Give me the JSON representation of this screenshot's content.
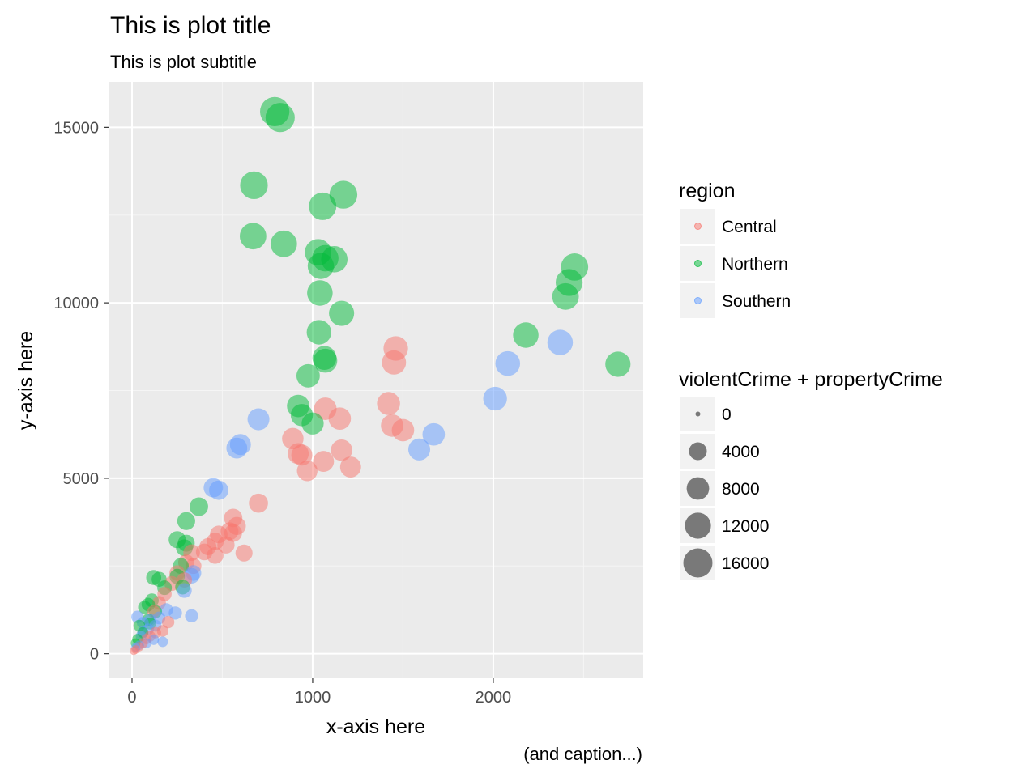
{
  "chart_data": {
    "type": "scatter",
    "title": "This is plot title",
    "subtitle": "This is plot subtitle",
    "xlabel": "x-axis here",
    "ylabel": "y-axis here",
    "caption": "(and caption...)",
    "xlim": [
      -130,
      2830
    ],
    "ylim": [
      -700,
      16300
    ],
    "xticks": [
      0,
      1000,
      2000
    ],
    "yticks": [
      0,
      5000,
      10000,
      15000
    ],
    "x_tick_labels": [
      "0",
      "1000",
      "2000"
    ],
    "y_tick_labels": [
      "0",
      "5000",
      "10000",
      "15000"
    ],
    "grid": true,
    "legend_position": "right",
    "color_legend": {
      "title": "region",
      "entries": [
        {
          "label": "Central",
          "color": "#F8766D"
        },
        {
          "label": "Northern",
          "color": "#00BA38"
        },
        {
          "label": "Southern",
          "color": "#619CFF"
        }
      ]
    },
    "size_legend": {
      "title": "violentCrime + propertyCrime",
      "entries": [
        {
          "label": "0",
          "value": 0
        },
        {
          "label": "4000",
          "value": 4000
        },
        {
          "label": "8000",
          "value": 8000
        },
        {
          "label": "12000",
          "value": 12000
        },
        {
          "label": "16000",
          "value": 16000
        }
      ]
    },
    "series": [
      {
        "name": "Northern",
        "color": "#00BA38",
        "points": [
          [
            790,
            15450
          ],
          [
            820,
            15280
          ],
          [
            675,
            13350
          ],
          [
            1170,
            13080
          ],
          [
            1055,
            12750
          ],
          [
            670,
            11900
          ],
          [
            840,
            11680
          ],
          [
            1030,
            11440
          ],
          [
            1070,
            11270
          ],
          [
            1120,
            11240
          ],
          [
            1045,
            11050
          ],
          [
            1040,
            10280
          ],
          [
            1160,
            9700
          ],
          [
            1035,
            9160
          ],
          [
            1065,
            8430
          ],
          [
            1070,
            8350
          ],
          [
            975,
            7920
          ],
          [
            920,
            7060
          ],
          [
            940,
            6800
          ],
          [
            1000,
            6560
          ],
          [
            2450,
            11020
          ],
          [
            2420,
            10580
          ],
          [
            2400,
            10180
          ],
          [
            2180,
            9080
          ],
          [
            2690,
            8250
          ],
          [
            370,
            4190
          ],
          [
            300,
            3780
          ],
          [
            250,
            3250
          ],
          [
            300,
            3150
          ],
          [
            290,
            3020
          ],
          [
            270,
            2500
          ],
          [
            250,
            2200
          ],
          [
            280,
            1900
          ],
          [
            120,
            2170
          ],
          [
            150,
            2120
          ],
          [
            180,
            1880
          ],
          [
            110,
            1520
          ],
          [
            90,
            1400
          ],
          [
            70,
            1320
          ],
          [
            130,
            1200
          ],
          [
            90,
            970
          ],
          [
            100,
            860
          ],
          [
            40,
            800
          ],
          [
            60,
            600
          ],
          [
            30,
            420
          ],
          [
            20,
            300
          ]
        ]
      },
      {
        "name": "Central",
        "color": "#F8766D",
        "points": [
          [
            1460,
            8700
          ],
          [
            1450,
            8300
          ],
          [
            1420,
            7130
          ],
          [
            1440,
            6500
          ],
          [
            1500,
            6370
          ],
          [
            1070,
            6980
          ],
          [
            1150,
            6700
          ],
          [
            890,
            6130
          ],
          [
            920,
            5700
          ],
          [
            940,
            5660
          ],
          [
            1160,
            5800
          ],
          [
            1060,
            5480
          ],
          [
            1210,
            5320
          ],
          [
            970,
            5210
          ],
          [
            700,
            4290
          ],
          [
            560,
            3870
          ],
          [
            580,
            3640
          ],
          [
            540,
            3490
          ],
          [
            480,
            3400
          ],
          [
            460,
            3200
          ],
          [
            520,
            3100
          ],
          [
            560,
            3440
          ],
          [
            620,
            2870
          ],
          [
            420,
            3050
          ],
          [
            400,
            2900
          ],
          [
            460,
            2800
          ],
          [
            330,
            2880
          ],
          [
            300,
            2600
          ],
          [
            340,
            2500
          ],
          [
            250,
            2300
          ],
          [
            290,
            2100
          ],
          [
            220,
            2000
          ],
          [
            180,
            1700
          ],
          [
            150,
            1450
          ],
          [
            120,
            1200
          ],
          [
            200,
            900
          ],
          [
            170,
            650
          ],
          [
            130,
            600
          ],
          [
            100,
            500
          ],
          [
            80,
            420
          ],
          [
            60,
            300
          ],
          [
            40,
            200
          ],
          [
            20,
            120
          ],
          [
            10,
            80
          ]
        ]
      },
      {
        "name": "Southern",
        "color": "#619CFF",
        "points": [
          [
            2370,
            8870
          ],
          [
            2080,
            8270
          ],
          [
            2010,
            7270
          ],
          [
            1670,
            6250
          ],
          [
            1590,
            5820
          ],
          [
            700,
            6680
          ],
          [
            600,
            5960
          ],
          [
            580,
            5860
          ],
          [
            450,
            4730
          ],
          [
            480,
            4660
          ],
          [
            340,
            2300
          ],
          [
            330,
            2220
          ],
          [
            290,
            1800
          ],
          [
            330,
            1080
          ],
          [
            240,
            1160
          ],
          [
            190,
            1250
          ],
          [
            150,
            1020
          ],
          [
            100,
            960
          ],
          [
            60,
            880
          ],
          [
            30,
            1050
          ],
          [
            130,
            800
          ],
          [
            90,
            700
          ],
          [
            60,
            620
          ],
          [
            120,
            400
          ],
          [
            80,
            300
          ],
          [
            40,
            240
          ],
          [
            20,
            180
          ],
          [
            50,
            500
          ],
          [
            170,
            340
          ]
        ]
      }
    ]
  }
}
